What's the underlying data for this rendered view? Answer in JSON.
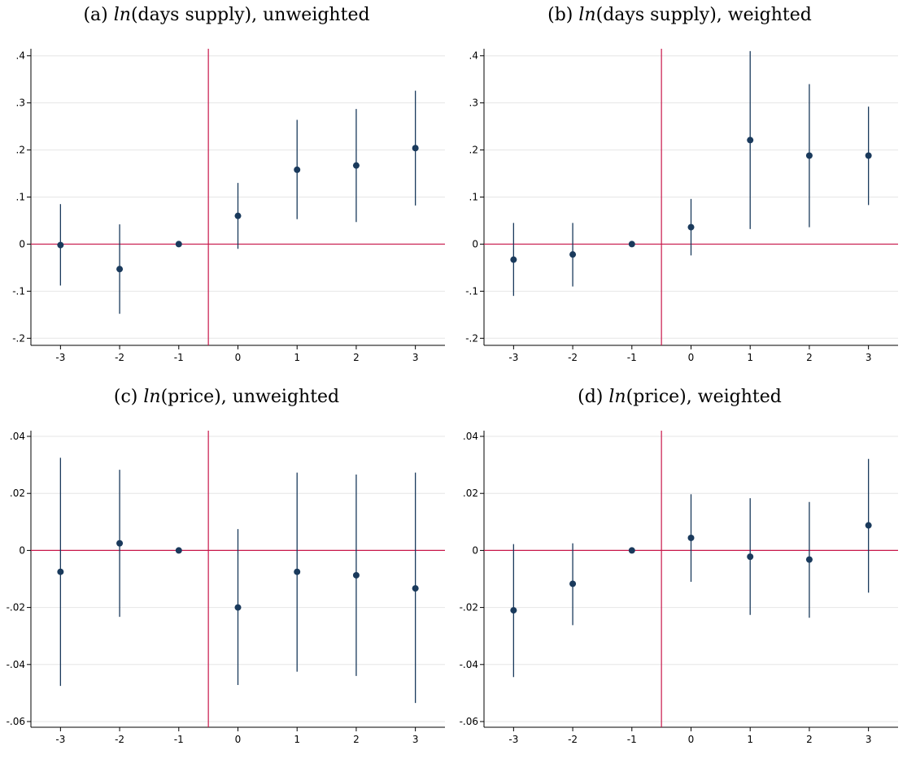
{
  "colors": {
    "marker": "#1a3a5c",
    "ci": "#1a3a5c",
    "reference_line": "#c8174a",
    "grid": "#e6e6e6",
    "axis": "#000000"
  },
  "chart_data": [
    {
      "type": "scatter",
      "title_prefix": "(a)",
      "title_func": "ln",
      "title_arg": "(days supply)",
      "title_suffix": ", unweighted",
      "x": [
        -3,
        -2,
        -1,
        0,
        1,
        2,
        3
      ],
      "y": [
        -0.002,
        -0.053,
        0.0,
        0.06,
        0.158,
        0.167,
        0.204
      ],
      "ci_low": [
        -0.088,
        -0.148,
        0.0,
        -0.01,
        0.053,
        0.047,
        0.082
      ],
      "ci_high": [
        0.085,
        0.042,
        0.0,
        0.13,
        0.264,
        0.287,
        0.326
      ],
      "xlim": [
        -3.5,
        3.5
      ],
      "ylim": [
        -0.215,
        0.415
      ],
      "xticks": [
        -3,
        -2,
        -1,
        0,
        1,
        2,
        3
      ],
      "xtick_labels": [
        "-3",
        "-2",
        "-1",
        "0",
        "1",
        "2",
        "3"
      ],
      "yticks": [
        -0.2,
        -0.1,
        0,
        0.1,
        0.2,
        0.3,
        0.4
      ],
      "ytick_labels": [
        "-.2",
        "-.1",
        "0",
        ".1",
        ".2",
        ".3",
        ".4"
      ],
      "hline": 0,
      "vline": -0.5,
      "grid": true
    },
    {
      "type": "scatter",
      "title_prefix": "(b)",
      "title_func": "ln",
      "title_arg": "(days supply)",
      "title_suffix": ", weighted",
      "x": [
        -3,
        -2,
        -1,
        0,
        1,
        2,
        3
      ],
      "y": [
        -0.033,
        -0.022,
        0.0,
        0.036,
        0.221,
        0.188,
        0.188
      ],
      "ci_low": [
        -0.11,
        -0.09,
        0.0,
        -0.024,
        0.032,
        0.036,
        0.083
      ],
      "ci_high": [
        0.045,
        0.045,
        0.0,
        0.096,
        0.41,
        0.34,
        0.292
      ],
      "xlim": [
        -3.5,
        3.5
      ],
      "ylim": [
        -0.215,
        0.415
      ],
      "xticks": [
        -3,
        -2,
        -1,
        0,
        1,
        2,
        3
      ],
      "xtick_labels": [
        "-3",
        "-2",
        "-1",
        "0",
        "1",
        "2",
        "3"
      ],
      "yticks": [
        -0.2,
        -0.1,
        0,
        0.1,
        0.2,
        0.3,
        0.4
      ],
      "ytick_labels": [
        "-.2",
        "-.1",
        "0",
        ".1",
        ".2",
        ".3",
        ".4"
      ],
      "hline": 0,
      "vline": -0.5,
      "grid": true
    },
    {
      "type": "scatter",
      "title_prefix": "(c)",
      "title_func": "ln",
      "title_arg": "(price)",
      "title_suffix": ", unweighted",
      "x": [
        -3,
        -2,
        -1,
        0,
        1,
        2,
        3
      ],
      "y": [
        -0.0075,
        0.0025,
        0.0,
        -0.02,
        -0.0075,
        -0.0087,
        -0.0133
      ],
      "ci_low": [
        -0.0475,
        -0.0233,
        0.0,
        -0.0472,
        -0.0425,
        -0.044,
        -0.0535
      ],
      "ci_high": [
        0.0325,
        0.0283,
        0.0,
        0.0075,
        0.0273,
        0.0266,
        0.0273
      ],
      "xlim": [
        -3.5,
        3.5
      ],
      "ylim": [
        -0.062,
        0.042
      ],
      "xticks": [
        -3,
        -2,
        -1,
        0,
        1,
        2,
        3
      ],
      "xtick_labels": [
        "-3",
        "-2",
        "-1",
        "0",
        "1",
        "2",
        "3"
      ],
      "yticks": [
        -0.06,
        -0.04,
        -0.02,
        0,
        0.02,
        0.04
      ],
      "ytick_labels": [
        "-.06",
        "-.04",
        "-.02",
        "0",
        ".02",
        ".04"
      ],
      "hline": 0,
      "vline": -0.5,
      "grid": true
    },
    {
      "type": "scatter",
      "title_prefix": "(d)",
      "title_func": "ln",
      "title_arg": "(price)",
      "title_suffix": ", weighted",
      "x": [
        -3,
        -2,
        -1,
        0,
        1,
        2,
        3
      ],
      "y": [
        -0.021,
        -0.0117,
        0.0,
        0.0044,
        -0.0022,
        -0.0032,
        0.0088
      ],
      "ci_low": [
        -0.0444,
        -0.0262,
        0.0,
        -0.011,
        -0.0226,
        -0.0236,
        -0.0148
      ],
      "ci_high": [
        0.0022,
        0.0025,
        0.0,
        0.0197,
        0.0183,
        0.017,
        0.0321
      ],
      "xlim": [
        -3.5,
        3.5
      ],
      "ylim": [
        -0.062,
        0.042
      ],
      "xticks": [
        -3,
        -2,
        -1,
        0,
        1,
        2,
        3
      ],
      "xtick_labels": [
        "-3",
        "-2",
        "-1",
        "0",
        "1",
        "2",
        "3"
      ],
      "yticks": [
        -0.06,
        -0.04,
        -0.02,
        0,
        0.02,
        0.04
      ],
      "ytick_labels": [
        "-.06",
        "-.04",
        "-.02",
        "0",
        ".02",
        ".04"
      ],
      "hline": 0,
      "vline": -0.5,
      "grid": true
    }
  ]
}
